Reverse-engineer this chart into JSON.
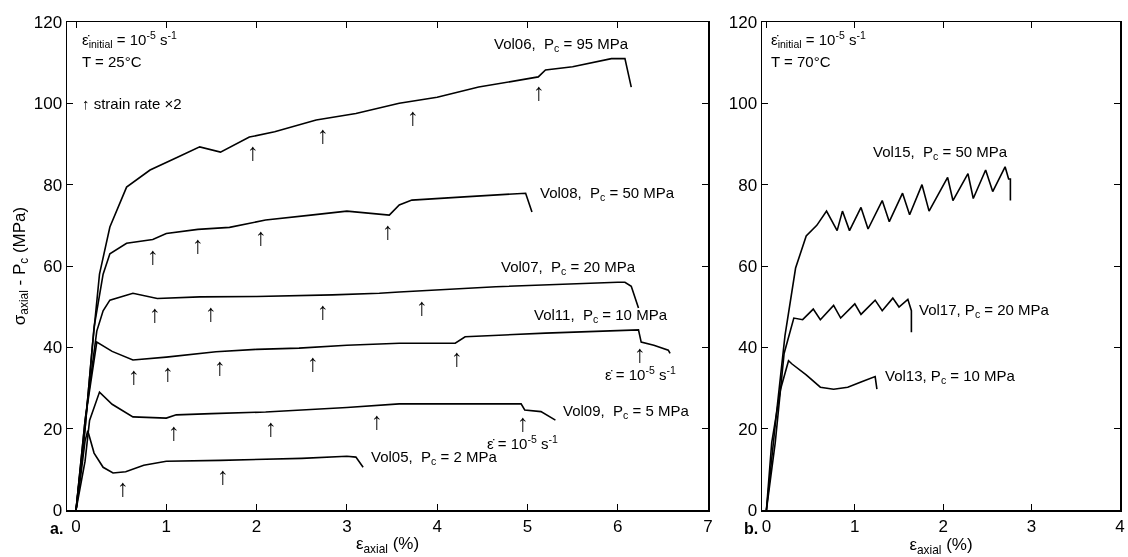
{
  "chart_data": [
    {
      "type": "line",
      "title": "a.",
      "xlabel": "ε$_{axial}$ (%)",
      "ylabel": "σ$_{axial}$ - P$_{c}$ (MPa)",
      "xlim": [
        -0.1,
        7
      ],
      "ylim": [
        0,
        120
      ],
      "xticks": [
        0,
        1,
        2,
        3,
        4,
        5,
        6,
        7
      ],
      "yticks": [
        0,
        20,
        40,
        60,
        80,
        100,
        120
      ],
      "series": [
        {
          "name": "Vol06,  P$_{c}$ = 95 MPa",
          "color": "#000000",
          "x": [
            0,
            0.1,
            0.18,
            0.26,
            0.375,
            0.56,
            0.82,
            1.1,
            1.37,
            1.6,
            1.92,
            2.2,
            2.66,
            3.1,
            3.58,
            4.0,
            4.46,
            5.12,
            5.2,
            5.5,
            5.93,
            6.08,
            6.15
          ],
          "values": [
            0,
            20,
            40,
            58,
            69.6,
            79.4,
            83.6,
            86.5,
            89.3,
            88,
            91.7,
            93,
            95.9,
            97.5,
            100,
            101.5,
            104,
            106.5,
            108.2,
            109,
            111,
            111,
            104
          ]
        },
        {
          "name": "Vol08,  P$_{c}$ = 50 MPa",
          "color": "#000000",
          "x": [
            0,
            0.1,
            0.2,
            0.3,
            0.375,
            0.56,
            0.85,
            1.0,
            1.35,
            1.7,
            2.1,
            2.6,
            3.0,
            3.47,
            3.58,
            3.72,
            4.3,
            4.98,
            5.05
          ],
          "values": [
            0,
            20,
            45,
            58,
            63,
            65.6,
            66.5,
            68,
            69,
            69.5,
            71.3,
            72.5,
            73.5,
            72.5,
            75,
            76.2,
            77,
            77.9,
            73.3
          ]
        },
        {
          "name": "Vol07,  P$_{c}$ = 20 MPa",
          "color": "#000000",
          "x": [
            0,
            0.1,
            0.23,
            0.3,
            0.375,
            0.63,
            0.9,
            1.37,
            2.0,
            2.84,
            3.36,
            3.58,
            4.65,
            6.0,
            6.08,
            6.15,
            6.23
          ],
          "values": [
            0,
            22,
            44,
            49,
            51.6,
            53.3,
            52,
            52.4,
            52.5,
            52.9,
            53.3,
            53.6,
            54.9,
            56,
            56,
            55,
            49.7
          ]
        },
        {
          "name": "Vol11,  P$_{c}$ = 10 MPa",
          "color": "#000000",
          "x": [
            0,
            0.1,
            0.23,
            0.4,
            0.63,
            1.0,
            1.55,
            2.0,
            2.47,
            3.0,
            3.58,
            4.2,
            4.31,
            5.2,
            6.23,
            6.26,
            6.4,
            6.56,
            6.58
          ],
          "values": [
            0,
            22,
            41.3,
            39,
            36.9,
            37.6,
            38.9,
            39.5,
            39.8,
            40.5,
            41,
            41,
            42.6,
            43.5,
            44.3,
            41.3,
            40.5,
            39.3,
            38.5
          ]
        },
        {
          "name": "Vol09,  P$_{c}$ = 5 MPa",
          "color": "#000000",
          "x": [
            0,
            0.1,
            0.15,
            0.26,
            0.4,
            0.63,
            1.0,
            1.11,
            1.5,
            2.1,
            3.0,
            3.58,
            4.93,
            4.97,
            5.15,
            5.31
          ],
          "values": [
            0,
            12,
            22,
            29,
            26,
            22.9,
            22.6,
            23.4,
            23.7,
            24.1,
            25.2,
            26.1,
            26.1,
            24.6,
            24.2,
            22.1
          ]
        },
        {
          "name": "Vol05,  P$_{c}$ = 2 MPa",
          "color": "#000000",
          "x": [
            0,
            0.05,
            0.1,
            0.13,
            0.2,
            0.3,
            0.41,
            0.55,
            0.75,
            1.0,
            1.6,
            2.5,
            3.0,
            3.1,
            3.18
          ],
          "values": [
            0,
            8,
            17,
            19.5,
            14,
            10.5,
            9.1,
            9.4,
            11,
            12,
            12.2,
            12.7,
            13.2,
            13,
            10.5
          ]
        }
      ],
      "annotations": [
        "ε̇$_{initial}$ = 10$^{-5}$ s$^{-1}$",
        "T = 25°C",
        "↑ strain rate ×2",
        {
          "text": "ε̇ = 10$^{-5}$ s$^{-1}$",
          "x": 6.25,
          "y": 42.3
        },
        {
          "text": "ε̇ = 10$^{-5}$ s$^{-1}$",
          "x": 4.95,
          "y": 25.4
        },
        {
          "text": "↑",
          "x": 1.96,
          "y": 91.9
        },
        {
          "text": "↑",
          "x": 2.73,
          "y": 96.2
        },
        {
          "text": "↑",
          "x": 3.73,
          "y": 100.5
        },
        {
          "text": "↑",
          "x": 5.13,
          "y": 106.7
        },
        {
          "text": "↑",
          "x": 0.85,
          "y": 66.5
        },
        {
          "text": "↑",
          "x": 1.35,
          "y": 69
        },
        {
          "text": "↑",
          "x": 2.05,
          "y": 71.1
        },
        {
          "text": "↑",
          "x": 3.45,
          "y": 72.5
        },
        {
          "text": "↑",
          "x": 0.87,
          "y": 52.1
        },
        {
          "text": "↑",
          "x": 1.49,
          "y": 52.4
        },
        {
          "text": "↑",
          "x": 2.74,
          "y": 52.9
        },
        {
          "text": "↑",
          "x": 3.83,
          "y": 53.9
        },
        {
          "text": "↑",
          "x": 0.64,
          "y": 36.9
        },
        {
          "text": "↑",
          "x": 1.02,
          "y": 37.6
        },
        {
          "text": "↑",
          "x": 1.6,
          "y": 39
        },
        {
          "text": "↑",
          "x": 2.62,
          "y": 40
        },
        {
          "text": "↑",
          "x": 4.22,
          "y": 41.3
        },
        {
          "text": "↑",
          "x": 6.25,
          "y": 42.3
        },
        {
          "text": "↑",
          "x": 1.08,
          "y": 23.2
        },
        {
          "text": "↑",
          "x": 2.16,
          "y": 24.2
        },
        {
          "text": "↑",
          "x": 3.33,
          "y": 25.7
        },
        {
          "text": "↑",
          "x": 4.95,
          "y": 25.4
        },
        {
          "text": "↑",
          "x": 0.52,
          "y": 9.3
        },
        {
          "text": "↑",
          "x": 1.63,
          "y": 12.2
        }
      ]
    },
    {
      "type": "line",
      "title": "b.",
      "xlabel": "ε$_{axial}$ (%)",
      "xlim": [
        -0.05,
        4
      ],
      "ylim": [
        0,
        120
      ],
      "xticks": [
        0,
        1,
        2,
        3,
        4
      ],
      "yticks": [
        0,
        20,
        40,
        60,
        80,
        100,
        120
      ],
      "series": [
        {
          "name": "Vol15,  P$_{c}$ = 50 MPa",
          "color": "#000000",
          "x": [
            0,
            0.1,
            0.21,
            0.33,
            0.45,
            0.57,
            0.68,
            0.8,
            0.86,
            0.94,
            1.07,
            1.15,
            1.31,
            1.39,
            1.54,
            1.62,
            1.76,
            1.84,
            2.05,
            2.11,
            2.28,
            2.34,
            2.48,
            2.56,
            2.7,
            2.74,
            2.76,
            2.76
          ],
          "values": [
            0,
            21,
            42.9,
            59.5,
            67.4,
            70,
            73.5,
            68.7,
            73.5,
            68.7,
            74.4,
            69.1,
            76.1,
            70.9,
            77.9,
            72.6,
            80,
            73.5,
            81.8,
            76.1,
            82.7,
            76.6,
            83.6,
            78.3,
            84.4,
            81.4,
            81.4,
            76.1
          ]
        },
        {
          "name": "Vol17, P$_{c}$ = 20 MPa",
          "color": "#000000",
          "x": [
            0,
            0.1,
            0.2,
            0.31,
            0.41,
            0.53,
            0.61,
            0.76,
            0.84,
            1.0,
            1.07,
            1.23,
            1.31,
            1.43,
            1.5,
            1.6,
            1.64,
            1.64
          ],
          "values": [
            0,
            16.6,
            38.5,
            47.2,
            46.8,
            49.4,
            46.8,
            50.3,
            47.2,
            50.7,
            48.1,
            51.6,
            49,
            52.1,
            49.9,
            51.8,
            49,
            43.7
          ]
        },
        {
          "name": "Vol13, P$_{c}$ = 10 MPa",
          "color": "#000000",
          "x": [
            0,
            0.06,
            0.16,
            0.25,
            0.29,
            0.45,
            0.61,
            0.76,
            0.92,
            1.07,
            1.23,
            1.25
          ],
          "values": [
            0,
            16.6,
            29.7,
            36.7,
            35.9,
            33.2,
            30.2,
            29.7,
            30.2,
            31.5,
            32.8,
            29.7
          ]
        }
      ],
      "annotations": [
        "ε̇$_{initial}$ = 10$^{-5}$ s$^{-1}$",
        "T = 70°C"
      ]
    }
  ]
}
